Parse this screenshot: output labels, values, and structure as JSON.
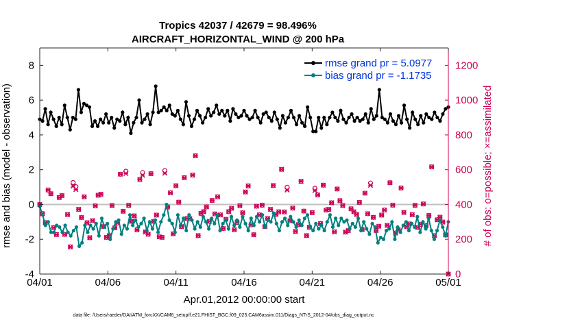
{
  "chart_data": {
    "type": "line",
    "title_line1": "Tropics 42037 / 42679 = 98.496%",
    "title_line2": "AIRCRAFT_HORIZONTAL_WIND @ 200 hPa",
    "xlabel": "Apr.01,2012 00:00:00 start",
    "ylabel_left": "rmse and bias (model - observation)",
    "ylabel_right": "# of obs: o=possible; ×=assimilated",
    "footnote": "data file: /Users/raeder/DAI/ATM_forcXX/CAM6_setup/f.e21.FHIST_BGC.f09_025.CAM6assim.011/Diags_NTrS_2012-04/obs_diag_output.nc",
    "x_ticks": [
      "04/01",
      "04/06",
      "04/11",
      "04/16",
      "04/21",
      "04/26",
      "05/01"
    ],
    "x_tick_days": [
      0,
      5,
      10,
      15,
      20,
      25,
      30
    ],
    "x_range_days": [
      0,
      30
    ],
    "ylim_left": [
      -4,
      9
    ],
    "y_ticks_left": [
      "-4",
      "-2",
      "0",
      "2",
      "4",
      "6",
      "8"
    ],
    "ylim_right": [
      0,
      1300
    ],
    "y_ticks_right": [
      "0",
      "200",
      "400",
      "600",
      "800",
      "1000",
      "1200"
    ],
    "legend": [
      {
        "label": "rmse grand pr = 5.0977",
        "color": "#0033dd"
      },
      {
        "label": "bias grand pr = -1.1735",
        "color": "#0033dd"
      }
    ],
    "series": [
      {
        "name": "rmse",
        "color": "#000000",
        "axis": "left",
        "values": [
          4.9,
          4.8,
          5.5,
          4.6,
          5.3,
          4.9,
          4.5,
          5.0,
          4.6,
          5.7,
          5.0,
          4.3,
          5.0,
          4.9,
          6.6,
          5.3,
          5.8,
          5.7,
          5.6,
          4.5,
          4.8,
          4.5,
          4.9,
          4.7,
          5.2,
          4.7,
          5.0,
          4.4,
          4.9,
          4.8,
          5.3,
          4.6,
          5.0,
          4.1,
          4.7,
          5.0,
          6.0,
          4.7,
          4.9,
          5.2,
          4.6,
          5.3,
          6.8,
          5.3,
          5.4,
          5.6,
          5.4,
          5.7,
          5.2,
          5.1,
          5.4,
          4.9,
          4.6,
          5.9,
          5.1,
          4.5,
          4.9,
          5.4,
          5.1,
          4.7,
          5.0,
          5.5,
          5.1,
          5.3,
          5.7,
          5.2,
          5.4,
          5.1,
          5.4,
          4.8,
          5.5,
          5.2,
          5.0,
          5.1,
          5.4,
          5.1,
          4.9,
          5.0,
          5.4,
          5.0,
          4.7,
          5.2,
          5.3,
          5.0,
          4.8,
          5.3,
          4.9,
          4.4,
          5.1,
          4.7,
          5.0,
          5.4,
          5.0,
          4.6,
          5.1,
          4.7,
          4.5,
          5.6,
          5.0,
          4.2,
          4.2,
          5.0,
          4.4,
          5.0,
          4.6,
          5.0,
          5.3,
          5.0,
          4.8,
          5.4,
          4.9,
          4.7,
          5.0,
          5.2,
          4.8,
          5.0,
          4.8,
          4.9,
          5.2,
          4.7,
          5.5,
          4.9,
          5.1,
          6.6,
          5.0,
          4.9,
          4.7,
          5.2,
          4.8,
          4.6,
          5.1,
          4.7,
          5.7,
          4.9,
          4.4,
          5.3,
          4.9,
          4.6,
          5.1,
          4.7,
          5.2,
          5.0,
          4.9,
          5.3,
          5.0,
          4.8,
          5.2,
          5.5,
          5.6
        ]
      },
      {
        "name": "bias",
        "color": "#008080",
        "axis": "left",
        "values": [
          -0.1,
          -0.6,
          -1.2,
          -1.0,
          -1.6,
          -1.6,
          -1.2,
          -1.3,
          -1.6,
          -1.2,
          -1.6,
          -1.8,
          -1.5,
          -1.3,
          -2.4,
          -2.2,
          -1.2,
          -1.6,
          -1.2,
          -1.4,
          -1.1,
          -1.8,
          -0.8,
          -1.3,
          -1.1,
          -2.0,
          -1.4,
          -1.0,
          -0.9,
          -1.7,
          -1.2,
          -1.4,
          -0.6,
          -1.2,
          -0.9,
          -1.3,
          -1.1,
          -0.8,
          -1.5,
          -1.0,
          -1.4,
          -0.9,
          -1.6,
          -1.0,
          -0.6,
          0.0,
          -0.9,
          -1.1,
          -1.6,
          -0.6,
          -1.2,
          -0.8,
          -1.5,
          -0.6,
          -0.9,
          -1.4,
          -1.0,
          -1.3,
          -0.7,
          -1.0,
          -1.4,
          -0.8,
          -1.1,
          -0.6,
          -1.5,
          -1.1,
          -0.9,
          -1.4,
          -0.7,
          -1.2,
          -0.9,
          -1.3,
          -0.7,
          -1.1,
          -1.5,
          -0.8,
          -1.2,
          -0.7,
          -1.0,
          -0.6,
          -1.3,
          -0.9,
          -1.0,
          -0.5,
          -1.1,
          -1.5,
          -1.0,
          -0.8,
          -1.2,
          -0.7,
          -1.0,
          -1.3,
          -0.9,
          -1.2,
          -0.8,
          -0.6,
          -1.3,
          -1.5,
          -1.1,
          -1.4,
          -1.2,
          -1.5,
          -1.0,
          -0.6,
          -1.3,
          -0.8,
          -1.2,
          -0.8,
          -1.0,
          -0.9,
          -1.4,
          -1.1,
          -1.3,
          -0.8,
          -1.5,
          -1.0,
          -1.4,
          -1.7,
          -1.1,
          -1.3,
          -2.2,
          -1.9,
          -2.0,
          -1.5,
          -1.4,
          -1.0,
          -2.0,
          -1.3,
          -1.6,
          -1.2,
          -1.0,
          -1.5,
          -1.1,
          -1.3,
          -0.7,
          -1.6,
          -1.0,
          -1.4,
          -0.8,
          -1.5,
          -2.0,
          -1.5,
          -0.9,
          -1.3,
          -1.8,
          -1.0
        ]
      },
      {
        "name": "obs possible",
        "color": "#cc0055",
        "axis": "right",
        "marker": "o",
        "values": [
          400,
          348,
          296,
          483,
          462,
          267,
          227,
          440,
          451,
          228,
          342,
          156,
          526,
          502,
          372,
          325,
          444,
          295,
          209,
          307,
          392,
          453,
          459,
          273,
          211,
          221,
          394,
          266,
          294,
          574,
          361,
          591,
          395,
          303,
          335,
          254,
          544,
          583,
          242,
          229,
          577,
          303,
          339,
          214,
          211,
          595,
          385,
          467,
          231,
          508,
          413,
          273,
          554,
          319,
          318,
          569,
          680,
          221,
          349,
          359,
          386,
          303,
          423,
          346,
          444,
          340,
          262,
          315,
          359,
          378,
          255,
          297,
          393,
          352,
          472,
          507,
          283,
          226,
          390,
          340,
          396,
          273,
          319,
          372,
          509,
          343,
          358,
          602,
          357,
          499,
          306,
          379,
          245,
          284,
          533,
          362,
          221,
          269,
          353,
          493,
          455,
          290,
          511,
          368,
          372,
          410,
          243,
          489,
          422,
          394,
          241,
          250,
          375,
          358,
          343,
          412,
          256,
          465,
          347,
          523,
          326,
          250,
          275,
          339,
          368,
          280,
          525,
          396,
          236,
          254,
          495,
          354,
          272,
          288,
          341,
          395,
          268,
          286,
          403,
          278,
          337,
          616,
          221,
          312,
          327,
          299,
          225,
          0
        ]
      },
      {
        "name": "obs assimilated",
        "color": "#cc0055",
        "axis": "right",
        "marker": "x",
        "values": [
          400,
          346,
          296,
          483,
          462,
          267,
          227,
          440,
          451,
          228,
          342,
          156,
          506,
          486,
          372,
          325,
          444,
          295,
          209,
          307,
          392,
          453,
          459,
          273,
          211,
          221,
          394,
          266,
          294,
          574,
          361,
          578,
          395,
          303,
          335,
          254,
          544,
          568,
          242,
          229,
          577,
          303,
          339,
          214,
          211,
          580,
          385,
          467,
          231,
          508,
          413,
          273,
          554,
          319,
          318,
          569,
          680,
          221,
          349,
          359,
          386,
          303,
          423,
          346,
          444,
          340,
          262,
          315,
          359,
          378,
          255,
          297,
          393,
          352,
          472,
          507,
          283,
          226,
          390,
          340,
          396,
          273,
          319,
          372,
          509,
          343,
          358,
          602,
          357,
          483,
          306,
          379,
          245,
          284,
          533,
          362,
          221,
          269,
          353,
          480,
          455,
          290,
          511,
          368,
          372,
          410,
          243,
          489,
          422,
          394,
          241,
          250,
          375,
          358,
          343,
          412,
          256,
          465,
          347,
          510,
          326,
          250,
          275,
          339,
          368,
          280,
          525,
          396,
          236,
          254,
          495,
          354,
          272,
          288,
          341,
          395,
          268,
          286,
          403,
          278,
          337,
          616,
          221,
          312,
          327,
          299,
          225,
          0
        ]
      }
    ]
  }
}
